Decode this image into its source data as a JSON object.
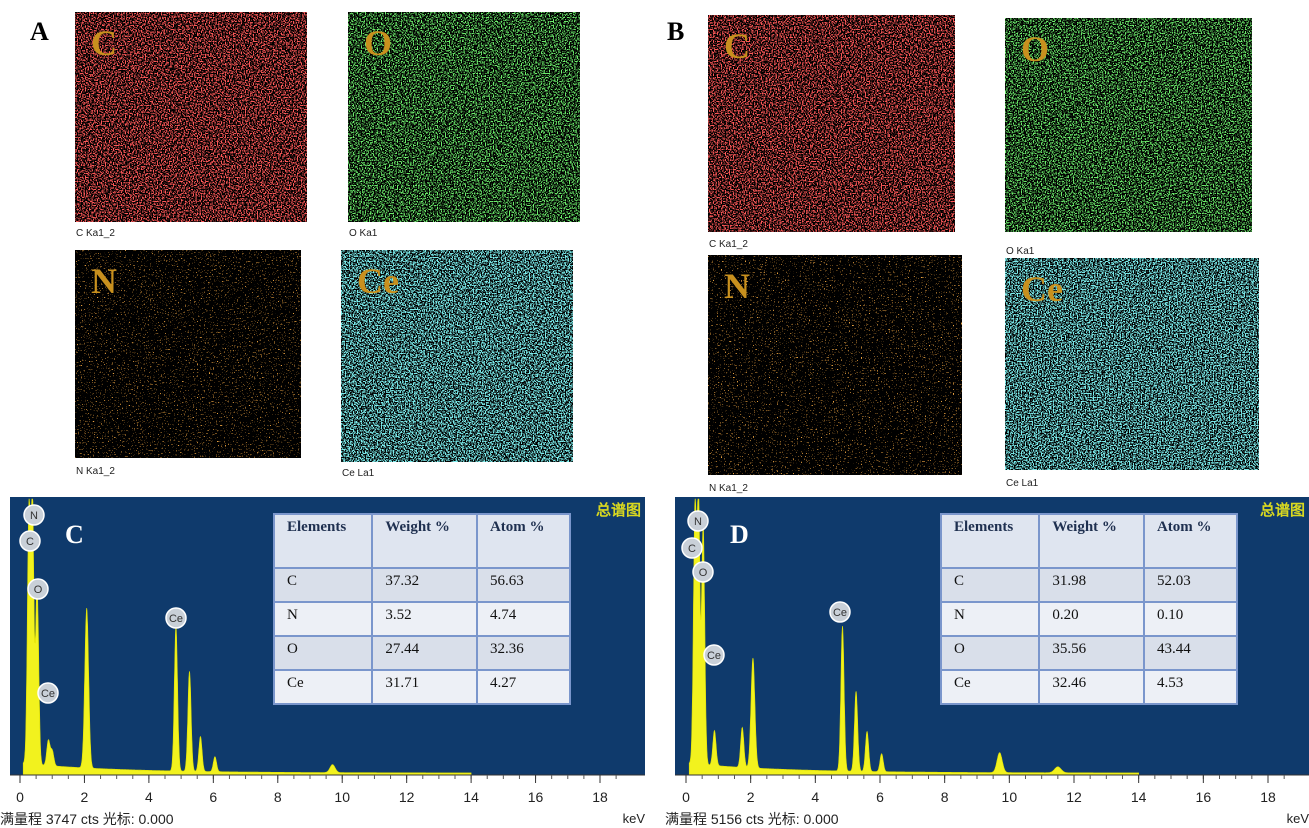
{
  "panels": [
    {
      "label": "A",
      "maps": [
        {
          "element": "C",
          "caption": "C Ka1_2"
        },
        {
          "element": "O",
          "caption": "O Ka1"
        },
        {
          "element": "N",
          "caption": "N Ka1_2"
        },
        {
          "element": "Ce",
          "caption": "Ce La1"
        }
      ]
    },
    {
      "label": "B",
      "maps": [
        {
          "element": "C",
          "caption": "C Ka1_2"
        },
        {
          "element": "O",
          "caption": "O Ka1"
        },
        {
          "element": "N",
          "caption": "N Ka1_2"
        },
        {
          "element": "Ce",
          "caption": "Ce La1"
        }
      ]
    }
  ],
  "spectra": [
    {
      "label": "C",
      "title": "总谱图",
      "peak_labels": [
        "N",
        "C",
        "O",
        "Ce",
        "Ce"
      ],
      "table": {
        "header": [
          "Elements",
          "Weight %",
          "Atom %"
        ],
        "rows": [
          [
            "C",
            "37.32",
            "56.63"
          ],
          [
            "N",
            "3.52",
            "4.74"
          ],
          [
            "O",
            "27.44",
            "32.36"
          ],
          [
            "Ce",
            "31.71",
            "4.27"
          ]
        ]
      },
      "xticks": [
        0,
        2,
        4,
        6,
        8,
        10,
        12,
        14,
        16,
        18
      ],
      "unit": "keV",
      "footer": "满量程 3747 cts 光标: 0.000"
    },
    {
      "label": "D",
      "title": "总谱图",
      "peak_labels": [
        "N",
        "C",
        "O",
        "Ce",
        "Ce"
      ],
      "table": {
        "header": [
          "Elements",
          "Weight %",
          "Atom %"
        ],
        "rows": [
          [
            "C",
            "31.98",
            "52.03"
          ],
          [
            "N",
            "0.20",
            "0.10"
          ],
          [
            "O",
            "35.56",
            "43.44"
          ],
          [
            "Ce",
            "32.46",
            "4.53"
          ]
        ]
      },
      "xticks": [
        0,
        2,
        4,
        6,
        8,
        10,
        12,
        14,
        16,
        18
      ],
      "unit": "keV",
      "footer": "满量程 5156 cts 光标: 0.000"
    }
  ]
}
